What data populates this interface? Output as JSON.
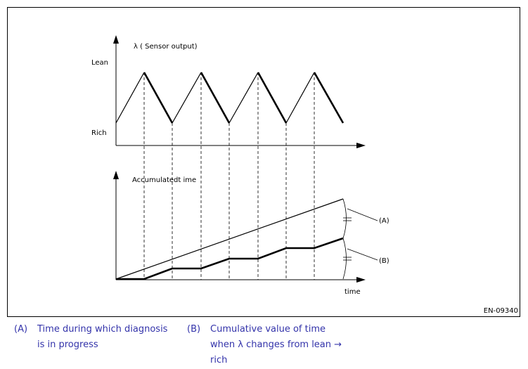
{
  "diagram": {
    "top_chart": {
      "title": "λ ( Sensor output)",
      "y_high_label": "Lean",
      "y_low_label": "Rich"
    },
    "bottom_chart": {
      "title": "Accumulatedt ime",
      "x_label": "time",
      "marker_a": "(A)",
      "marker_b": "(B)"
    },
    "figure_code": "EN-09340"
  },
  "legend": {
    "a_key": "(A)",
    "a_text_line1": "Time during which diagnosis",
    "a_text_line2": "is in progress",
    "b_key": "(B)",
    "b_text_line1": "Cumulative value of time",
    "b_text_line2": "when λ changes from lean →",
    "b_text_line3": "rich"
  },
  "colors": {
    "legend_text": "#3333aa",
    "line": "#000000"
  }
}
